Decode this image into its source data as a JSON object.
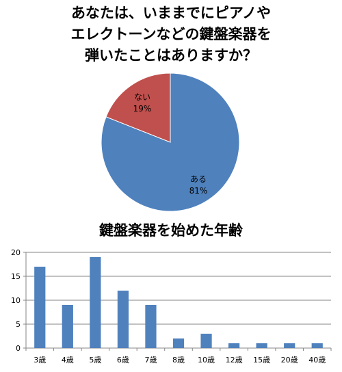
{
  "chart_data": [
    {
      "type": "pie",
      "title_lines": [
        "あなたは、いままでにピアノや",
        "エレクトーンなどの鍵盤楽器を",
        "弾いたことはありますか？"
      ],
      "slices": [
        {
          "label": "ある",
          "value": 81,
          "value_label": "81%",
          "color": "#4f81bd"
        },
        {
          "label": "ない",
          "value": 19,
          "value_label": "19%",
          "color": "#c0504d"
        }
      ],
      "legend": "none"
    },
    {
      "type": "bar",
      "title": "鍵盤楽器を始めた年齢",
      "categories": [
        "3歳",
        "4歳",
        "5歳",
        "6歳",
        "7歳",
        "8歳",
        "10歳",
        "12歳",
        "15歳",
        "20歳",
        "40歳"
      ],
      "values": [
        17,
        9,
        19,
        12,
        9,
        2,
        3,
        1,
        1,
        1,
        1
      ],
      "ylim": [
        0,
        20
      ],
      "yticks": [
        "0",
        "5",
        "10",
        "15",
        "20"
      ],
      "grid": true,
      "bar_color": "#4f81bd",
      "xlabel": "",
      "ylabel": ""
    }
  ]
}
